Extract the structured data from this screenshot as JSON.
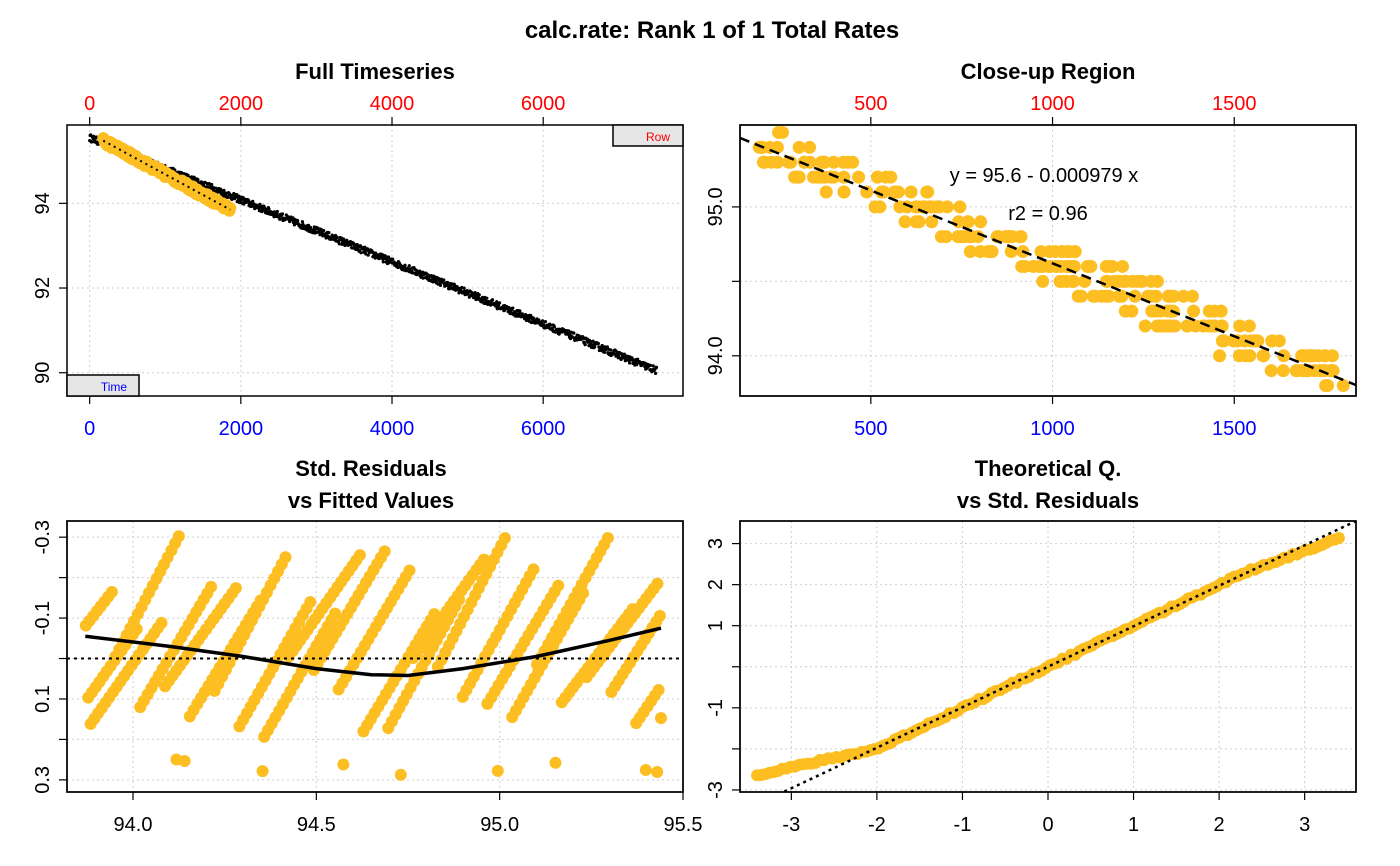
{
  "figure": {
    "title": "calc.rate: Rank 1 of 1 Total Rates",
    "colors": {
      "points": "#FDBE22",
      "raw": "#000000",
      "top_axis": "#FF0000",
      "bottom_axis": "#0000FF",
      "label_box": "#E6E6E6"
    }
  },
  "chart_data": [
    {
      "id": "full_timeseries",
      "type": "scatter",
      "title": "Full Timeseries",
      "xlabel": "",
      "ylabel": "",
      "xlim": [
        -300,
        7850
      ],
      "ylim": [
        89.45,
        95.85
      ],
      "x_ticks": [
        0,
        2000,
        4000,
        6000
      ],
      "x_tick_labels": [
        "0",
        "2000",
        "4000",
        "6000"
      ],
      "x_top_ticks": [
        0,
        2000,
        4000,
        6000
      ],
      "x_top_tick_labels": [
        "0",
        "2000",
        "4000",
        "6000"
      ],
      "y_ticks": [
        90,
        92,
        94
      ],
      "y_tick_labels": [
        "90",
        "92",
        "94"
      ],
      "grid": true,
      "corner_labels": {
        "top_right": "Row",
        "bottom_left": "Time"
      },
      "series": [
        {
          "kind": "raw",
          "x_range": [
            0,
            7500
          ],
          "y_start": 95.55,
          "y_end": 90.05,
          "spread": 0.17,
          "n": 1200
        },
        {
          "kind": "subset",
          "x_range": [
            180,
            1860
          ],
          "y_start": 95.48,
          "y_end": 93.85,
          "spread": 0.14,
          "n": 170
        }
      ],
      "fit_line": {
        "x": [
          180,
          1860
        ],
        "y": [
          95.48,
          93.85
        ]
      }
    },
    {
      "id": "closeup",
      "type": "scatter",
      "title": "Close-up Region",
      "xlabel": "",
      "ylabel": "",
      "xlim": [
        140,
        1835
      ],
      "ylim": [
        93.73,
        95.55
      ],
      "x_ticks": [
        500,
        1000,
        1500
      ],
      "x_tick_labels": [
        "500",
        "1000",
        "1500"
      ],
      "x_top_ticks": [
        500,
        1000,
        1500
      ],
      "x_top_tick_labels": [
        "500",
        "1000",
        "1500"
      ],
      "y_ticks": [
        94.0,
        94.5,
        95.0
      ],
      "y_tick_labels": [
        "94.0",
        "",
        "95.0"
      ],
      "grid": true,
      "equation": "y = 95.6 - 0.000979 x",
      "r2": "r2 = 0.96",
      "fit": {
        "intercept": 95.6,
        "slope": -0.000979
      },
      "series": [
        {
          "kind": "points",
          "x_range": [
            190,
            1800
          ],
          "step": 0.1,
          "jitter": 0.13,
          "n": 260
        }
      ]
    },
    {
      "id": "residuals_vs_fitted",
      "type": "scatter",
      "title": [
        "Std. Residuals",
        "vs Fitted Values"
      ],
      "xlabel": "",
      "ylabel": "",
      "xlim": [
        93.82,
        95.5
      ],
      "ylim": [
        0.33,
        -0.34
      ],
      "x_ticks": [
        94.0,
        94.5,
        95.0,
        95.5
      ],
      "x_tick_labels": [
        "94.0",
        "94.5",
        "95.0",
        "95.5"
      ],
      "y_ticks": [
        -0.3,
        -0.1,
        0.1,
        0.3
      ],
      "y_tick_labels": [
        "-0.3",
        "-0.1",
        "0.1",
        "0.3"
      ],
      "y_minor_ticks": [
        -0.2,
        0.0,
        0.2
      ],
      "grid": true,
      "zero_line": 0,
      "smooth_line": {
        "x": [
          93.87,
          94.1,
          94.3,
          94.5,
          94.65,
          94.75,
          94.9,
          95.1,
          95.3,
          95.44
        ],
        "y": [
          -0.055,
          -0.03,
          -0.005,
          0.025,
          0.04,
          0.042,
          0.025,
          -0.005,
          -0.045,
          -0.075
        ]
      },
      "series": [
        {
          "kind": "diagonal_bands",
          "x_range": [
            93.87,
            95.44
          ],
          "n_bands": 26
        }
      ]
    },
    {
      "id": "qq",
      "type": "scatter",
      "title": [
        "Theoretical Q.",
        "vs Std. Residuals"
      ],
      "xlabel": "",
      "ylabel": "",
      "xlim": [
        -3.6,
        3.6
      ],
      "ylim": [
        -3.05,
        3.55
      ],
      "x_ticks": [
        -3,
        -2,
        -1,
        0,
        1,
        2,
        3
      ],
      "x_tick_labels": [
        "-3",
        "-2",
        "-1",
        "0",
        "1",
        "2",
        "3"
      ],
      "y_ticks": [
        -3,
        -1,
        1,
        2,
        3
      ],
      "y_tick_labels": [
        "-3",
        "-1",
        "1",
        "2",
        "3"
      ],
      "y_minor_ticks": [
        -2,
        0
      ],
      "grid": true,
      "ref_line": {
        "x": [
          -3.6,
          3.6
        ],
        "y": [
          -3.55,
          3.55
        ]
      },
      "series": [
        {
          "kind": "qq_points",
          "x_range": [
            -3.4,
            3.4
          ],
          "n": 140
        }
      ]
    }
  ]
}
